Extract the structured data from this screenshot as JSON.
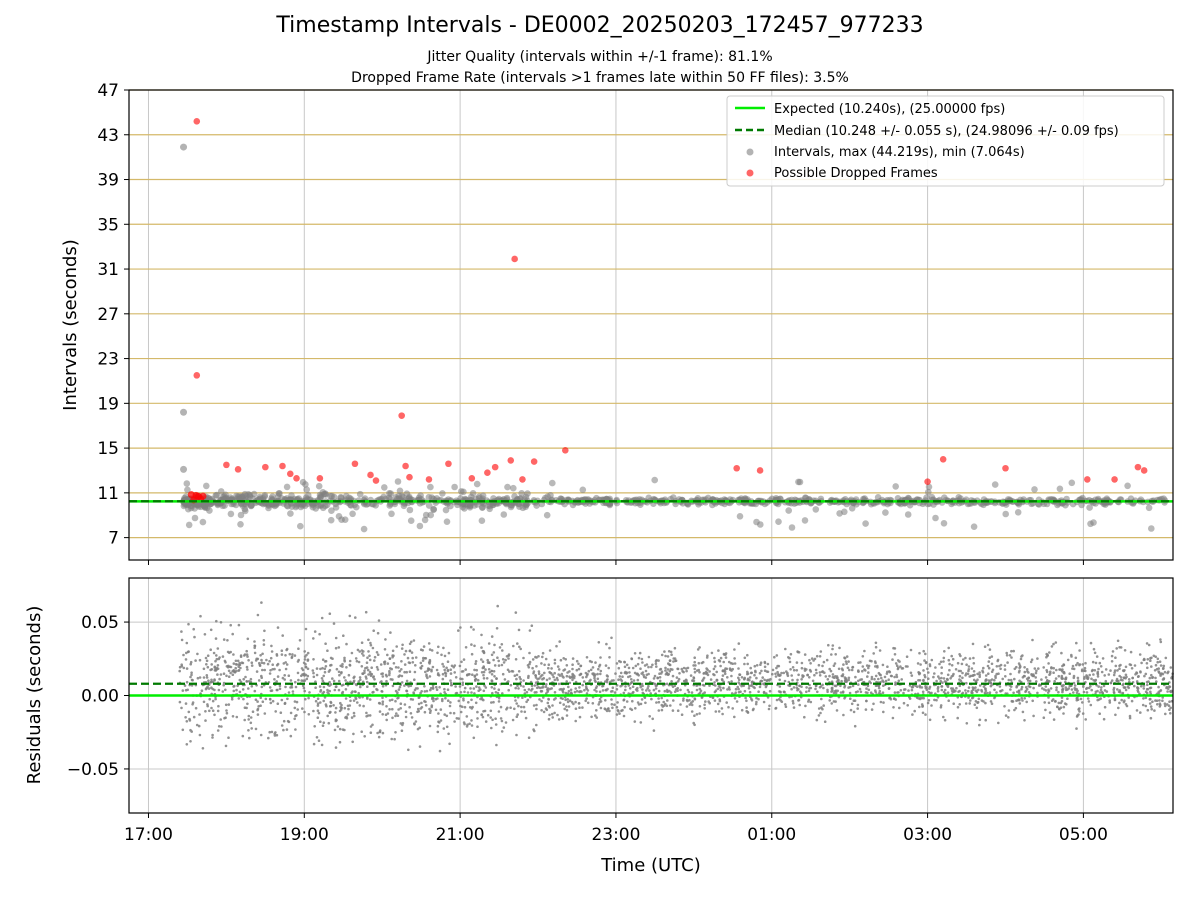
{
  "figure": {
    "title": "Timestamp Intervals - DE0002_20250203_172457_977233",
    "subtitle_jitter": "Jitter Quality (intervals within +/-1 frame): 81.1%",
    "subtitle_dropped": "Dropped Frame Rate (intervals >1 frames late within 50 FF files): 3.5%"
  },
  "colors": {
    "expected": "#00ee00",
    "median": "#007a00",
    "intervals": "#808080",
    "dropped": "#ff0000",
    "hgrid_top": "#d4b96a",
    "vgrid": "#c8c8c8"
  },
  "chart_data": [
    {
      "type": "scatter",
      "name": "intervals",
      "ylabel": "Intervals (seconds)",
      "xlabel": "",
      "xlim_hours": [
        16.75,
        30.15
      ],
      "ylim": [
        5,
        47
      ],
      "xticks": [
        {
          "hour": 17,
          "label": "17:00"
        },
        {
          "hour": 19,
          "label": "19:00"
        },
        {
          "hour": 21,
          "label": "21:00"
        },
        {
          "hour": 23,
          "label": "23:00"
        },
        {
          "hour": 25,
          "label": "01:00"
        },
        {
          "hour": 27,
          "label": "03:00"
        },
        {
          "hour": 29,
          "label": "05:00"
        }
      ],
      "yticks": [
        7,
        11,
        15,
        19,
        23,
        27,
        31,
        35,
        39,
        43,
        47
      ],
      "grid": "vertical gray, horizontal tan",
      "legend_position": "top-right",
      "legend": [
        "Expected (10.240s), (25.00000 fps)",
        "Median (10.248 +/- 0.055 s), (24.98096 +/- 0.09 fps)",
        "Intervals, max (44.219s), min (7.064s)",
        "Possible Dropped Frames"
      ],
      "expected_value": 10.24,
      "median_value": 10.248,
      "intervals_max": 44.219,
      "intervals_min": 7.064,
      "notable_intervals": [
        {
          "hour": 17.45,
          "value": 41.9
        },
        {
          "hour": 17.45,
          "value": 18.2
        },
        {
          "hour": 17.45,
          "value": 13.1
        }
      ],
      "dropped_frames": [
        {
          "hour": 17.62,
          "value": 44.2
        },
        {
          "hour": 17.62,
          "value": 21.5
        },
        {
          "hour": 18.0,
          "value": 13.5
        },
        {
          "hour": 18.15,
          "value": 13.1
        },
        {
          "hour": 18.5,
          "value": 13.3
        },
        {
          "hour": 18.72,
          "value": 13.4
        },
        {
          "hour": 18.82,
          "value": 12.7
        },
        {
          "hour": 18.9,
          "value": 12.3
        },
        {
          "hour": 19.2,
          "value": 12.3
        },
        {
          "hour": 19.65,
          "value": 13.6
        },
        {
          "hour": 19.85,
          "value": 12.6
        },
        {
          "hour": 19.92,
          "value": 12.1
        },
        {
          "hour": 20.3,
          "value": 13.4
        },
        {
          "hour": 20.25,
          "value": 17.9
        },
        {
          "hour": 20.35,
          "value": 12.4
        },
        {
          "hour": 20.6,
          "value": 12.2
        },
        {
          "hour": 20.85,
          "value": 13.6
        },
        {
          "hour": 21.15,
          "value": 12.3
        },
        {
          "hour": 21.35,
          "value": 12.8
        },
        {
          "hour": 21.45,
          "value": 13.3
        },
        {
          "hour": 21.65,
          "value": 13.9
        },
        {
          "hour": 21.7,
          "value": 31.9
        },
        {
          "hour": 21.8,
          "value": 12.2
        },
        {
          "hour": 21.95,
          "value": 13.8
        },
        {
          "hour": 22.35,
          "value": 14.8
        },
        {
          "hour": 24.55,
          "value": 13.2
        },
        {
          "hour": 24.85,
          "value": 13.0
        },
        {
          "hour": 27.0,
          "value": 12.0
        },
        {
          "hour": 27.2,
          "value": 14.0
        },
        {
          "hour": 28.0,
          "value": 13.2
        },
        {
          "hour": 29.05,
          "value": 12.2
        },
        {
          "hour": 29.4,
          "value": 12.2
        },
        {
          "hour": 29.7,
          "value": 13.3
        },
        {
          "hour": 29.78,
          "value": 13.0
        }
      ]
    },
    {
      "type": "scatter",
      "name": "residuals",
      "ylabel": "Residuals (seconds)",
      "xlabel": "Time (UTC)",
      "xlim_hours": [
        16.75,
        30.15
      ],
      "ylim": [
        -0.08,
        0.08
      ],
      "yticks": [
        {
          "value": 0.05,
          "label": "0.05"
        },
        {
          "value": 0.0,
          "label": "0.00"
        },
        {
          "value": -0.05,
          "label": "−0.05"
        }
      ],
      "expected_value": 0.0,
      "median_value": 0.008,
      "grid": "gray both directions"
    }
  ]
}
